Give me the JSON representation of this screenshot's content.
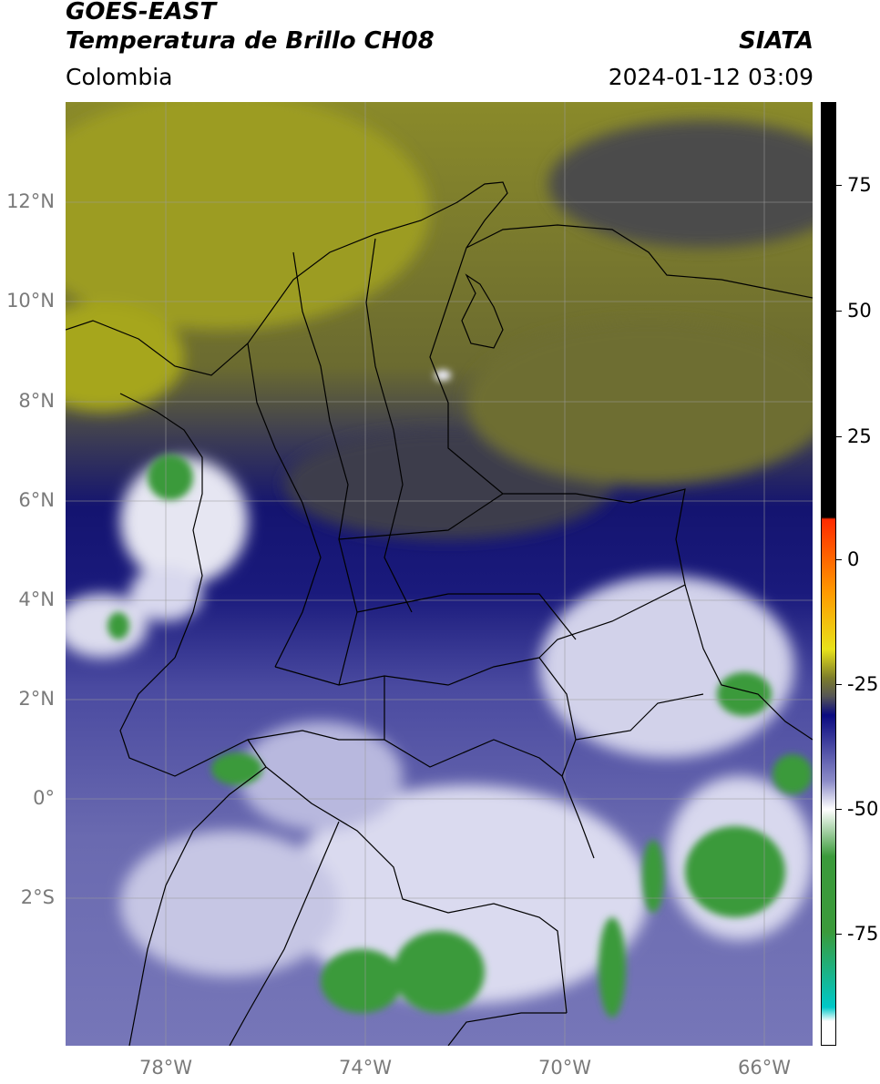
{
  "header": {
    "title_line1": "GOES-EAST",
    "title_line2": "Temperatura de Brillo CH08",
    "agency": "SIATA",
    "region": "Colombia",
    "timestamp": "2024-01-12 03:09"
  },
  "map": {
    "lat_labels": [
      "12°N",
      "10°N",
      "8°N",
      "6°N",
      "4°N",
      "2°N",
      "0°",
      "2°S"
    ],
    "lon_labels": [
      "78°W",
      "74°W",
      "70°W",
      "66°W"
    ],
    "grid": true
  },
  "colorbar": {
    "tick_labels": [
      "75",
      "50",
      "25",
      "0",
      "-25",
      "-50",
      "-75"
    ],
    "colors": {
      "warm_top": "#000000",
      "red": "#ff2a00",
      "orange": "#ff9a00",
      "yellow": "#e8e21a",
      "olive": "#7e7e2a",
      "gray": "#555555",
      "navy": "#0a0a80",
      "lavender": "#8c8cc8",
      "white": "#ffffff",
      "green": "#3a9a3a",
      "teal": "#00c8c8"
    }
  }
}
